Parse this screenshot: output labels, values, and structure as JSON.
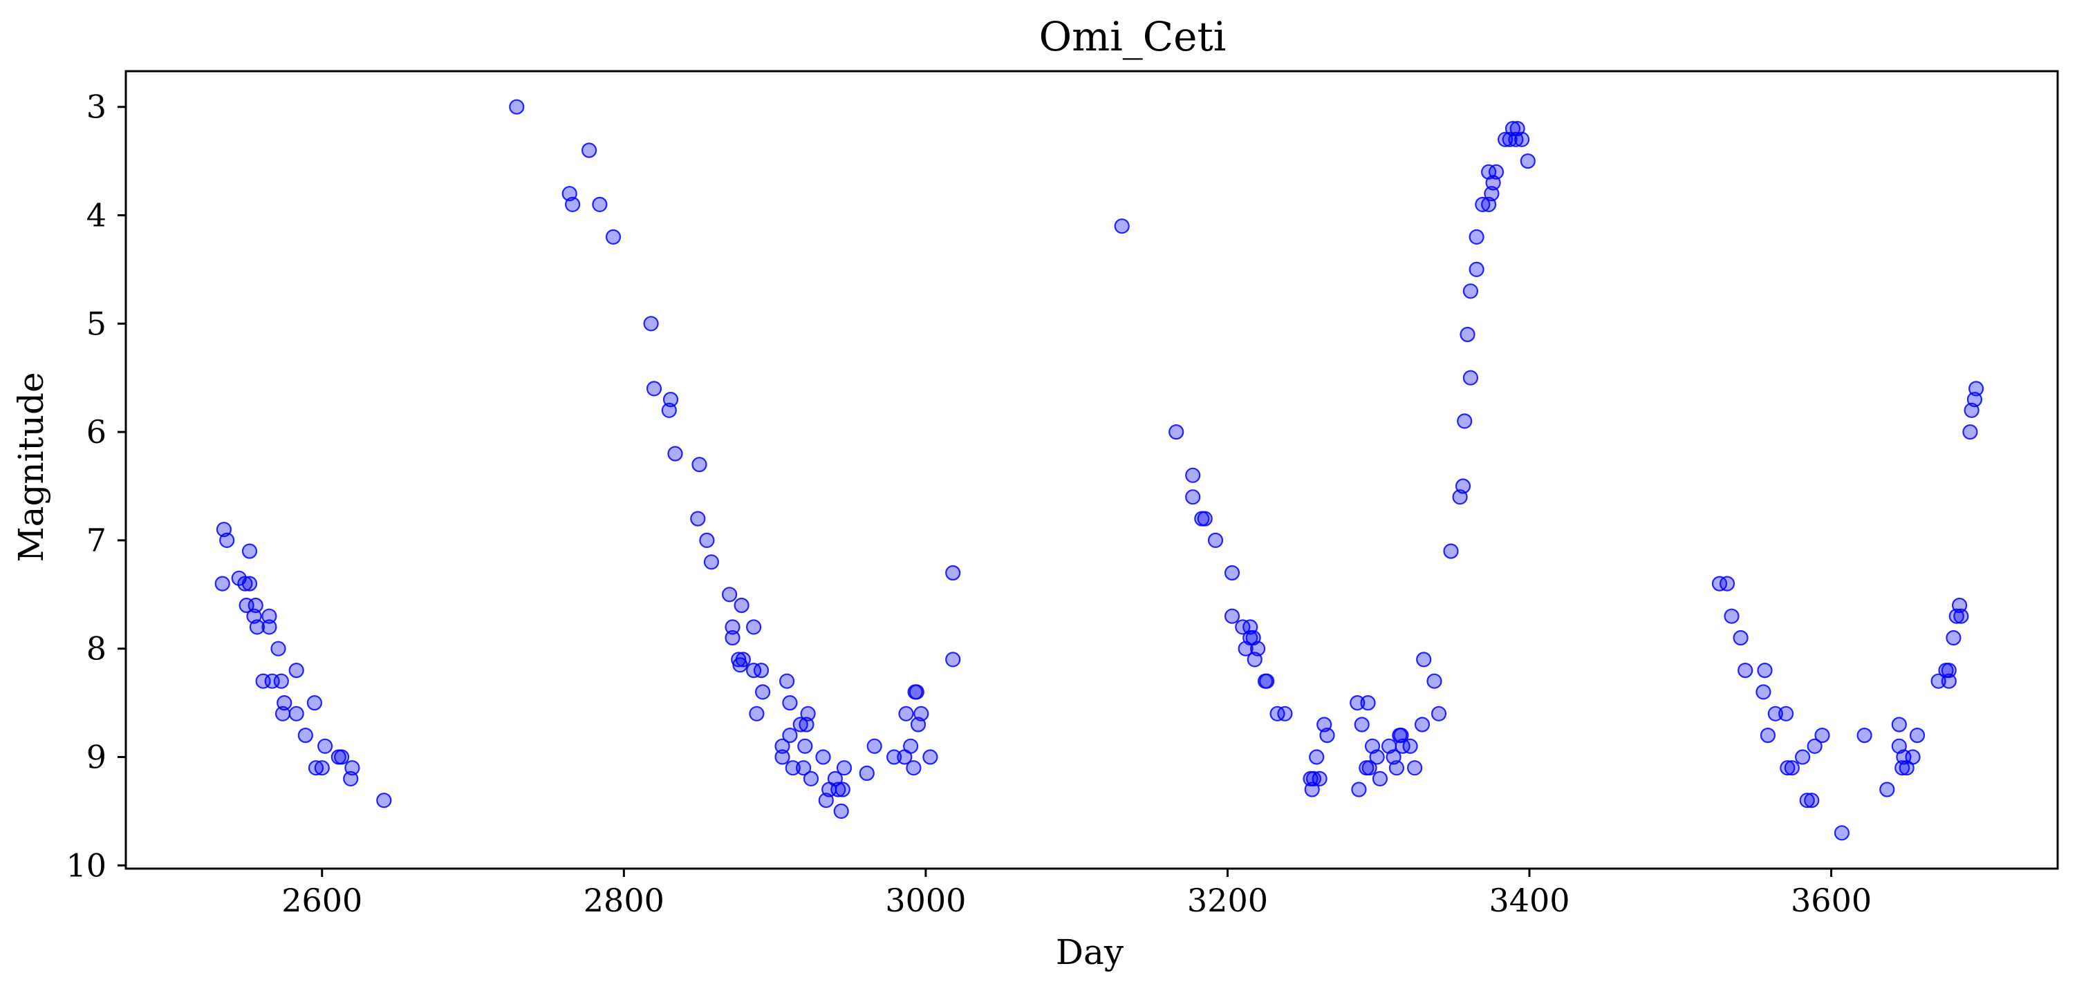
{
  "chart_data": {
    "type": "scatter",
    "title": "Omi_Ceti",
    "xlabel": "Day",
    "ylabel": "Magnitude",
    "xlim": [
      2470,
      3750
    ],
    "ylim": [
      10.03,
      2.67
    ],
    "y_inverted": true,
    "x_ticks": [
      2600,
      2800,
      3000,
      3200,
      3400,
      3600
    ],
    "y_ticks": [
      3,
      4,
      5,
      6,
      7,
      8,
      9,
      10
    ],
    "x_tick_labels": [
      "2600",
      "2800",
      "3000",
      "3200",
      "3400",
      "3600"
    ],
    "y_tick_labels": [
      "3",
      "4",
      "5",
      "6",
      "7",
      "8",
      "9",
      "10"
    ],
    "grid": false,
    "marker_color": "#0000ff",
    "marker_alpha": 0.33,
    "series": [
      {
        "points": [
          [
            2535,
            6.9
          ],
          [
            2537,
            7.0
          ],
          [
            2534,
            7.4
          ],
          [
            2545,
            7.35
          ],
          [
            2549,
            7.4
          ],
          [
            2552,
            7.4
          ],
          [
            2552,
            7.1
          ],
          [
            2550,
            7.6
          ],
          [
            2556,
            7.6
          ],
          [
            2555,
            7.7
          ],
          [
            2557,
            7.8
          ],
          [
            2565,
            7.7
          ],
          [
            2565,
            7.8
          ],
          [
            2571,
            8.0
          ],
          [
            2561,
            8.3
          ],
          [
            2567,
            8.3
          ],
          [
            2573,
            8.3
          ],
          [
            2575,
            8.5
          ],
          [
            2574,
            8.6
          ],
          [
            2583,
            8.2
          ],
          [
            2583,
            8.6
          ],
          [
            2589,
            8.8
          ],
          [
            2595,
            8.5
          ],
          [
            2596,
            9.1
          ],
          [
            2600,
            9.1
          ],
          [
            2602,
            8.9
          ],
          [
            2611,
            9.0
          ],
          [
            2613,
            9.0
          ],
          [
            2620,
            9.1
          ],
          [
            2619,
            9.2
          ],
          [
            2641,
            9.4
          ],
          [
            2729,
            3.0
          ],
          [
            2764,
            3.8
          ],
          [
            2766,
            3.9
          ],
          [
            2777,
            3.4
          ],
          [
            2784,
            3.9
          ],
          [
            2793,
            4.2
          ],
          [
            2818,
            5.0
          ],
          [
            2820,
            5.6
          ],
          [
            2831,
            5.7
          ],
          [
            2830,
            5.8
          ],
          [
            2834,
            6.2
          ],
          [
            2850,
            6.3
          ],
          [
            2849,
            6.8
          ],
          [
            2855,
            7.0
          ],
          [
            2858,
            7.2
          ],
          [
            2870,
            7.5
          ],
          [
            2872,
            7.8
          ],
          [
            2872,
            7.9
          ],
          [
            2878,
            7.6
          ],
          [
            2876,
            8.1
          ],
          [
            2879,
            8.1
          ],
          [
            2877,
            8.15
          ],
          [
            2886,
            7.8
          ],
          [
            2886,
            8.2
          ],
          [
            2891,
            8.2
          ],
          [
            2888,
            8.6
          ],
          [
            2892,
            8.4
          ],
          [
            2905,
            8.9
          ],
          [
            2905,
            9.0
          ],
          [
            2908,
            8.3
          ],
          [
            2910,
            8.5
          ],
          [
            2910,
            8.8
          ],
          [
            2912,
            9.1
          ],
          [
            2917,
            8.7
          ],
          [
            2919,
            9.1
          ],
          [
            2920,
            8.9
          ],
          [
            2921,
            8.7
          ],
          [
            2922,
            8.6
          ],
          [
            2924,
            9.2
          ],
          [
            2932,
            9.0
          ],
          [
            2934,
            9.4
          ],
          [
            2936,
            9.3
          ],
          [
            2940,
            9.2
          ],
          [
            2942,
            9.3
          ],
          [
            2944,
            9.5
          ],
          [
            2945,
            9.3
          ],
          [
            2946,
            9.1
          ],
          [
            2961,
            9.15
          ],
          [
            2966,
            8.9
          ],
          [
            2979,
            9.0
          ],
          [
            2986,
            9.0
          ],
          [
            2987,
            8.6
          ],
          [
            2990,
            8.9
          ],
          [
            2992,
            9.1
          ],
          [
            2993,
            8.4
          ],
          [
            2994,
            8.4
          ],
          [
            2995,
            8.7
          ],
          [
            2997,
            8.6
          ],
          [
            3003,
            9.0
          ],
          [
            3018,
            7.3
          ],
          [
            3018,
            8.1
          ],
          [
            3130,
            4.1
          ],
          [
            3166,
            6.0
          ],
          [
            3177,
            6.4
          ],
          [
            3177,
            6.6
          ],
          [
            3183,
            6.8
          ],
          [
            3185,
            6.8
          ],
          [
            3192,
            7.0
          ],
          [
            3203,
            7.3
          ],
          [
            3203,
            7.7
          ],
          [
            3210,
            7.8
          ],
          [
            3212,
            8.0
          ],
          [
            3215,
            7.8
          ],
          [
            3215,
            7.9
          ],
          [
            3217,
            7.9
          ],
          [
            3218,
            8.1
          ],
          [
            3220,
            8.0
          ],
          [
            3225,
            8.3
          ],
          [
            3226,
            8.3
          ],
          [
            3233,
            8.6
          ],
          [
            3238,
            8.6
          ],
          [
            3255,
            9.2
          ],
          [
            3256,
            9.3
          ],
          [
            3257,
            9.2
          ],
          [
            3259,
            9.0
          ],
          [
            3261,
            9.2
          ],
          [
            3264,
            8.7
          ],
          [
            3266,
            8.8
          ],
          [
            3286,
            8.5
          ],
          [
            3287,
            9.3
          ],
          [
            3289,
            8.7
          ],
          [
            3292,
            9.1
          ],
          [
            3294,
            9.1
          ],
          [
            3293,
            8.5
          ],
          [
            3296,
            8.9
          ],
          [
            3299,
            9.0
          ],
          [
            3301,
            9.2
          ],
          [
            3307,
            8.9
          ],
          [
            3310,
            9.0
          ],
          [
            3312,
            9.1
          ],
          [
            3314,
            8.8
          ],
          [
            3315,
            8.8
          ],
          [
            3316,
            8.9
          ],
          [
            3321,
            8.9
          ],
          [
            3324,
            9.1
          ],
          [
            3329,
            8.7
          ],
          [
            3330,
            8.1
          ],
          [
            3337,
            8.3
          ],
          [
            3340,
            8.6
          ],
          [
            3348,
            7.1
          ],
          [
            3354,
            6.6
          ],
          [
            3356,
            6.5
          ],
          [
            3357,
            5.9
          ],
          [
            3359,
            5.1
          ],
          [
            3361,
            5.5
          ],
          [
            3361,
            4.7
          ],
          [
            3365,
            4.5
          ],
          [
            3365,
            4.2
          ],
          [
            3369,
            3.9
          ],
          [
            3373,
            3.9
          ],
          [
            3373,
            3.6
          ],
          [
            3375,
            3.8
          ],
          [
            3376,
            3.7
          ],
          [
            3378,
            3.6
          ],
          [
            3384,
            3.3
          ],
          [
            3387,
            3.3
          ],
          [
            3389,
            3.2
          ],
          [
            3391,
            3.3
          ],
          [
            3392,
            3.2
          ],
          [
            3395,
            3.3
          ],
          [
            3399,
            3.5
          ],
          [
            3526,
            7.4
          ],
          [
            3531,
            7.4
          ],
          [
            3534,
            7.7
          ],
          [
            3540,
            7.9
          ],
          [
            3543,
            8.2
          ],
          [
            3556,
            8.2
          ],
          [
            3555,
            8.4
          ],
          [
            3558,
            8.8
          ],
          [
            3563,
            8.6
          ],
          [
            3570,
            8.6
          ],
          [
            3571,
            9.1
          ],
          [
            3574,
            9.1
          ],
          [
            3581,
            9.0
          ],
          [
            3584,
            9.4
          ],
          [
            3587,
            9.4
          ],
          [
            3589,
            8.9
          ],
          [
            3594,
            8.8
          ],
          [
            3607,
            9.7
          ],
          [
            3622,
            8.8
          ],
          [
            3637,
            9.3
          ],
          [
            3645,
            8.7
          ],
          [
            3645,
            8.9
          ],
          [
            3647,
            9.1
          ],
          [
            3648,
            9.0
          ],
          [
            3650,
            9.1
          ],
          [
            3654,
            9.0
          ],
          [
            3657,
            8.8
          ],
          [
            3671,
            8.3
          ],
          [
            3676,
            8.2
          ],
          [
            3678,
            8.2
          ],
          [
            3678,
            8.3
          ],
          [
            3681,
            7.9
          ],
          [
            3683,
            7.7
          ],
          [
            3685,
            7.6
          ],
          [
            3686,
            7.7
          ],
          [
            3692,
            6.0
          ],
          [
            3693,
            5.8
          ],
          [
            3695,
            5.7
          ],
          [
            3696,
            5.6
          ]
        ]
      }
    ]
  }
}
